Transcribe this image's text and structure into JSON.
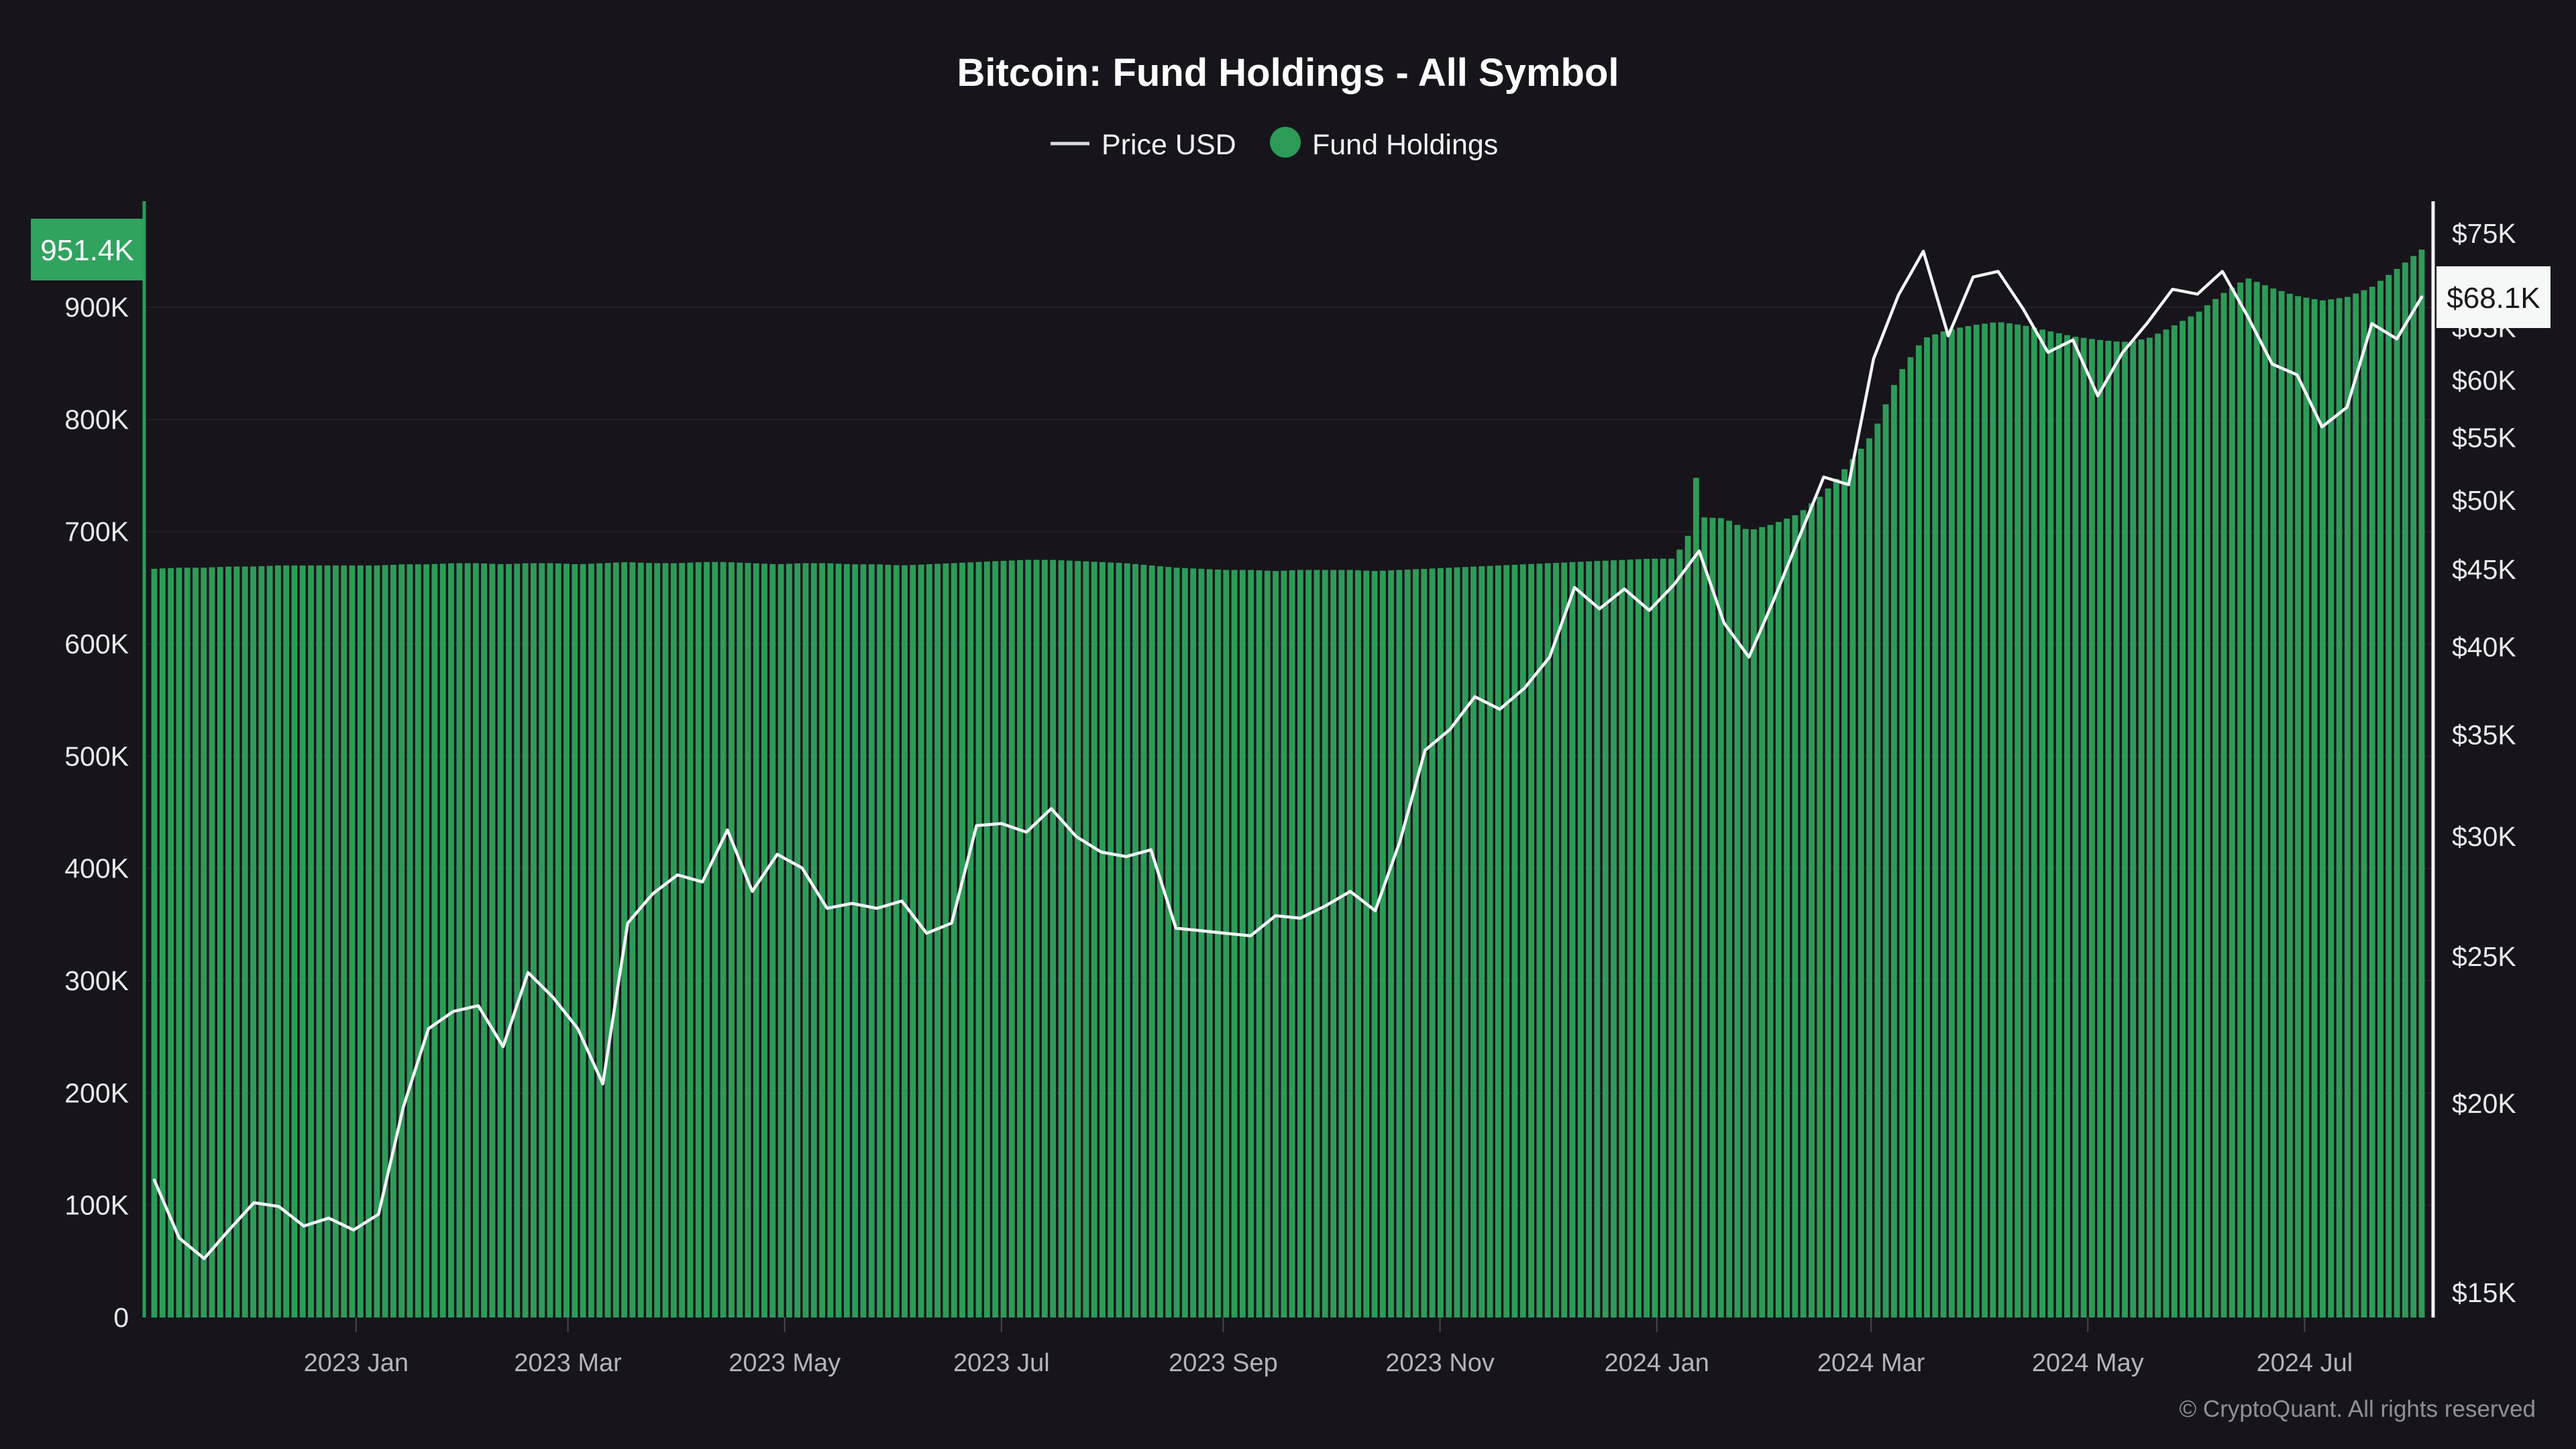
{
  "title": "Bitcoin: Fund Holdings - All Symbol",
  "legend": [
    {
      "label": "Price USD",
      "marker": "line-dash"
    },
    {
      "label": "Fund Holdings",
      "marker": "dot"
    }
  ],
  "badges": {
    "holdings_latest": "951.4K",
    "price_latest": "$68.1K"
  },
  "watermark": "© CryptoQuant. All rights reserved",
  "colors": {
    "background": "#17151b",
    "bar_green": "#2d9b58",
    "badge_green": "#30a35f",
    "badge_green_text": "#ffffff",
    "price_white": "#f4f5f7",
    "badge_price_bg": "#f6f7f7",
    "badge_price_text": "#18171b",
    "axis_text_bright": "#e9eaec",
    "axis_text_dim": "#b4b5bb",
    "tick_mark": "#45464c",
    "grid": "rgba(255,255,255,0.055)",
    "legend_dash": "#d9dadd",
    "watermark_text": "#8f9096"
  },
  "chart_data": {
    "type": "bar+line",
    "x": {
      "start": "2022-11-05",
      "interval": "weekly",
      "points": 92,
      "tick_labels": [
        "2023 Jan",
        "2023 Mar",
        "2023 May",
        "2023 Jul",
        "2023 Sep",
        "2023 Nov",
        "2024 Jan",
        "2024 Mar",
        "2024 May",
        "2024 Jul"
      ],
      "tick_week_offsets": [
        8.1,
        16.6,
        25.3,
        34.0,
        42.9,
        51.6,
        60.3,
        68.9,
        77.6,
        86.3
      ]
    },
    "y_left": {
      "axis_for": "Fund Holdings",
      "scale": "linear",
      "tick_labels": [
        "0",
        "100K",
        "200K",
        "300K",
        "400K",
        "500K",
        "600K",
        "700K",
        "800K",
        "900K"
      ],
      "tick_values_k": [
        0,
        100,
        200,
        300,
        400,
        500,
        600,
        700,
        800,
        900
      ],
      "range_k": [
        0,
        995
      ]
    },
    "y_right": {
      "axis_for": "Price USD",
      "scale": "log",
      "tick_labels": [
        "$15K",
        "$20K",
        "$25K",
        "$30K",
        "$35K",
        "$40K",
        "$45K",
        "$50K",
        "$55K",
        "$60K",
        "$65K",
        "$70K",
        "$75K"
      ],
      "tick_values_k": [
        15,
        20,
        25,
        30,
        35,
        40,
        45,
        50,
        55,
        60,
        65,
        70,
        75
      ]
    },
    "series": [
      {
        "name": "Fund Holdings",
        "type": "bar",
        "axis": "left",
        "unit": "K BTC",
        "values_k": [
          667,
          668,
          668,
          669,
          669,
          670,
          670,
          670,
          670,
          670,
          671,
          671,
          672,
          672,
          671,
          672,
          672,
          671,
          672,
          673,
          672,
          672,
          673,
          673,
          672,
          671,
          672,
          672,
          671,
          671,
          670,
          671,
          672,
          673,
          674,
          675,
          675,
          674,
          673,
          672,
          670,
          668,
          667,
          666,
          666,
          665,
          666,
          666,
          666,
          665,
          666,
          667,
          668,
          669,
          670,
          671,
          672,
          673,
          674,
          675,
          676,
          676,
          713,
          712,
          701,
          707,
          716,
          734,
          760,
          788,
          840,
          872,
          880,
          884,
          887,
          884,
          879,
          874,
          871,
          869,
          872,
          883,
          895,
          912,
          926,
          917,
          910,
          906,
          909,
          918,
          934,
          951.4
        ]
      },
      {
        "name": "Price USD",
        "type": "line",
        "axis": "right",
        "unit": "K USD",
        "values_k": [
          17.8,
          16.3,
          15.8,
          16.5,
          17.2,
          17.1,
          16.6,
          16.8,
          16.5,
          16.9,
          19.9,
          22.4,
          23.0,
          23.2,
          21.8,
          24.4,
          23.5,
          22.4,
          20.6,
          26.3,
          27.5,
          28.3,
          28.0,
          30.3,
          27.6,
          29.2,
          28.6,
          26.9,
          27.1,
          26.9,
          27.2,
          25.9,
          26.3,
          30.5,
          30.6,
          30.2,
          31.3,
          30.0,
          29.3,
          29.1,
          29.4,
          26.1,
          26.0,
          25.9,
          25.8,
          26.6,
          26.5,
          27.0,
          27.6,
          26.8,
          29.8,
          34.2,
          35.3,
          37.1,
          36.4,
          37.6,
          39.4,
          43.8,
          42.4,
          43.7,
          42.3,
          44.0,
          46.3,
          41.5,
          39.4,
          43.0,
          47.2,
          51.8,
          51.2,
          62.0,
          68.3,
          73.0,
          64.2,
          70.2,
          70.8,
          66.9,
          62.6,
          63.8,
          58.6,
          62.6,
          65.5,
          68.9,
          68.4,
          70.8,
          66.2,
          61.5,
          60.5,
          55.9,
          57.6,
          65.4,
          63.9,
          68.1
        ]
      }
    ],
    "spike": {
      "week_index": 62,
      "value_k": 748
    },
    "latest": {
      "fund_holdings_k": 951.4,
      "price_usd_k": 68.1
    }
  }
}
